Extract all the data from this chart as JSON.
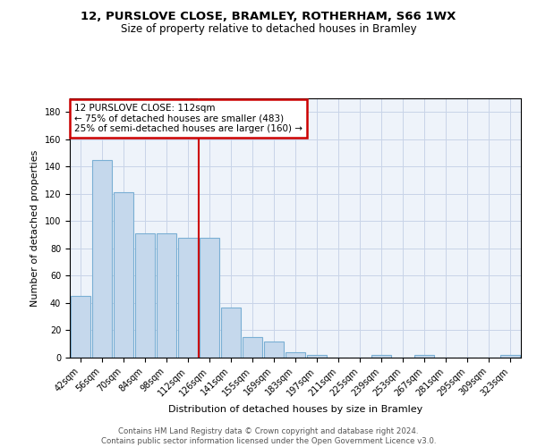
{
  "title": "12, PURSLOVE CLOSE, BRAMLEY, ROTHERHAM, S66 1WX",
  "subtitle": "Size of property relative to detached houses in Bramley",
  "xlabel": "Distribution of detached houses by size in Bramley",
  "ylabel": "Number of detached properties",
  "categories": [
    "42sqm",
    "56sqm",
    "70sqm",
    "84sqm",
    "98sqm",
    "112sqm",
    "126sqm",
    "141sqm",
    "155sqm",
    "169sqm",
    "183sqm",
    "197sqm",
    "211sqm",
    "225sqm",
    "239sqm",
    "253sqm",
    "267sqm",
    "281sqm",
    "295sqm",
    "309sqm",
    "323sqm"
  ],
  "values": [
    45,
    145,
    121,
    91,
    91,
    88,
    88,
    37,
    15,
    12,
    4,
    2,
    0,
    0,
    2,
    0,
    2,
    0,
    0,
    0,
    2
  ],
  "bar_color": "#c5d8ec",
  "bar_edge_color": "#7aafd4",
  "vline_x": 5.5,
  "vline_color": "#cc0000",
  "annotation_lines": [
    "12 PURSLOVE CLOSE: 112sqm",
    "← 75% of detached houses are smaller (483)",
    "25% of semi-detached houses are larger (160) →"
  ],
  "annotation_box_color": "#cc0000",
  "ylim": [
    0,
    190
  ],
  "yticks": [
    0,
    20,
    40,
    60,
    80,
    100,
    120,
    140,
    160,
    180
  ],
  "footer": "Contains HM Land Registry data © Crown copyright and database right 2024.\nContains public sector information licensed under the Open Government Licence v3.0.",
  "bg_color": "#eef3fa",
  "grid_color": "#c8d4e8",
  "figsize": [
    6.0,
    5.0
  ],
  "dpi": 100
}
